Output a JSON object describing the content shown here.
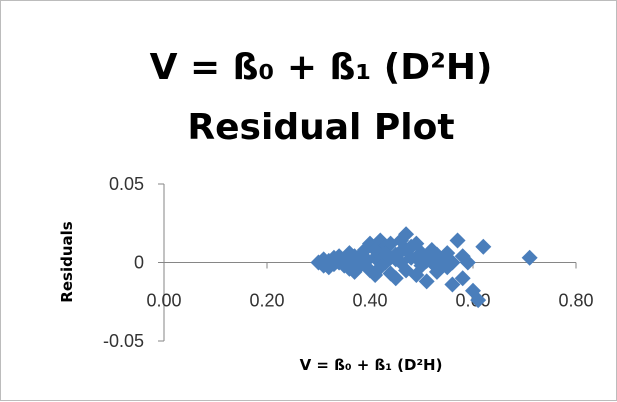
{
  "chart_data": {
    "type": "scatter",
    "title_lines": [
      "V = ß₀ + ß₁ (D²H)",
      "Residual Plot"
    ],
    "xlabel": "V = ß₀ + ß₁ (D²H)",
    "ylabel": "Residuals",
    "xlim": [
      0,
      0.8
    ],
    "ylim": [
      -0.05,
      0.05
    ],
    "x_ticks": [
      "0.00",
      "0.20",
      "0.40",
      "0.60",
      "0.80"
    ],
    "y_ticks": [
      "0.05",
      "0",
      "-0.05"
    ],
    "grid": false,
    "legend": "none",
    "marker": "diamond",
    "marker_color": "#4a7ebb",
    "points": [
      [
        0.3,
        0.0
      ],
      [
        0.31,
        -0.002
      ],
      [
        0.31,
        0.002
      ],
      [
        0.32,
        0.001
      ],
      [
        0.32,
        -0.003
      ],
      [
        0.33,
        0.003
      ],
      [
        0.33,
        -0.001
      ],
      [
        0.34,
        0.0
      ],
      [
        0.34,
        0.004
      ],
      [
        0.35,
        -0.002
      ],
      [
        0.35,
        0.002
      ],
      [
        0.36,
        0.006
      ],
      [
        0.36,
        -0.004
      ],
      [
        0.37,
        0.001
      ],
      [
        0.37,
        -0.006
      ],
      [
        0.38,
        0.004
      ],
      [
        0.38,
        -0.002
      ],
      [
        0.39,
        0.008
      ],
      [
        0.39,
        0.0
      ],
      [
        0.4,
        -0.005
      ],
      [
        0.4,
        0.012
      ],
      [
        0.41,
        0.003
      ],
      [
        0.41,
        -0.008
      ],
      [
        0.42,
        0.014
      ],
      [
        0.42,
        -0.003
      ],
      [
        0.43,
        0.01
      ],
      [
        0.43,
        0.0
      ],
      [
        0.44,
        -0.007
      ],
      [
        0.44,
        0.012
      ],
      [
        0.45,
        0.005
      ],
      [
        0.45,
        -0.01
      ],
      [
        0.46,
        0.014
      ],
      [
        0.46,
        0.0
      ],
      [
        0.47,
        0.018
      ],
      [
        0.47,
        -0.005
      ],
      [
        0.48,
        0.01
      ],
      [
        0.48,
        0.003
      ],
      [
        0.49,
        0.012
      ],
      [
        0.49,
        -0.008
      ],
      [
        0.5,
        0.006
      ],
      [
        0.5,
        -0.002
      ],
      [
        0.51,
        0.004
      ],
      [
        0.51,
        -0.012
      ],
      [
        0.52,
        0.008
      ],
      [
        0.52,
        0.0
      ],
      [
        0.53,
        -0.006
      ],
      [
        0.53,
        0.005
      ],
      [
        0.54,
        0.0
      ],
      [
        0.55,
        -0.003
      ],
      [
        0.55,
        0.006
      ],
      [
        0.56,
        -0.014
      ],
      [
        0.56,
        0.0
      ],
      [
        0.57,
        0.014
      ],
      [
        0.58,
        0.004
      ],
      [
        0.58,
        -0.01
      ],
      [
        0.59,
        0.0
      ],
      [
        0.6,
        -0.018
      ],
      [
        0.61,
        -0.024
      ],
      [
        0.62,
        0.01
      ],
      [
        0.71,
        0.003
      ],
      [
        0.43,
        0.006
      ],
      [
        0.45,
        0.002
      ],
      [
        0.47,
        0.008
      ],
      [
        0.41,
        0.008
      ],
      [
        0.39,
        0.003
      ],
      [
        0.37,
        0.004
      ],
      [
        0.49,
        0.003
      ],
      [
        0.51,
        0.001
      ],
      [
        0.44,
        0.003
      ],
      [
        0.46,
        0.007
      ]
    ]
  }
}
